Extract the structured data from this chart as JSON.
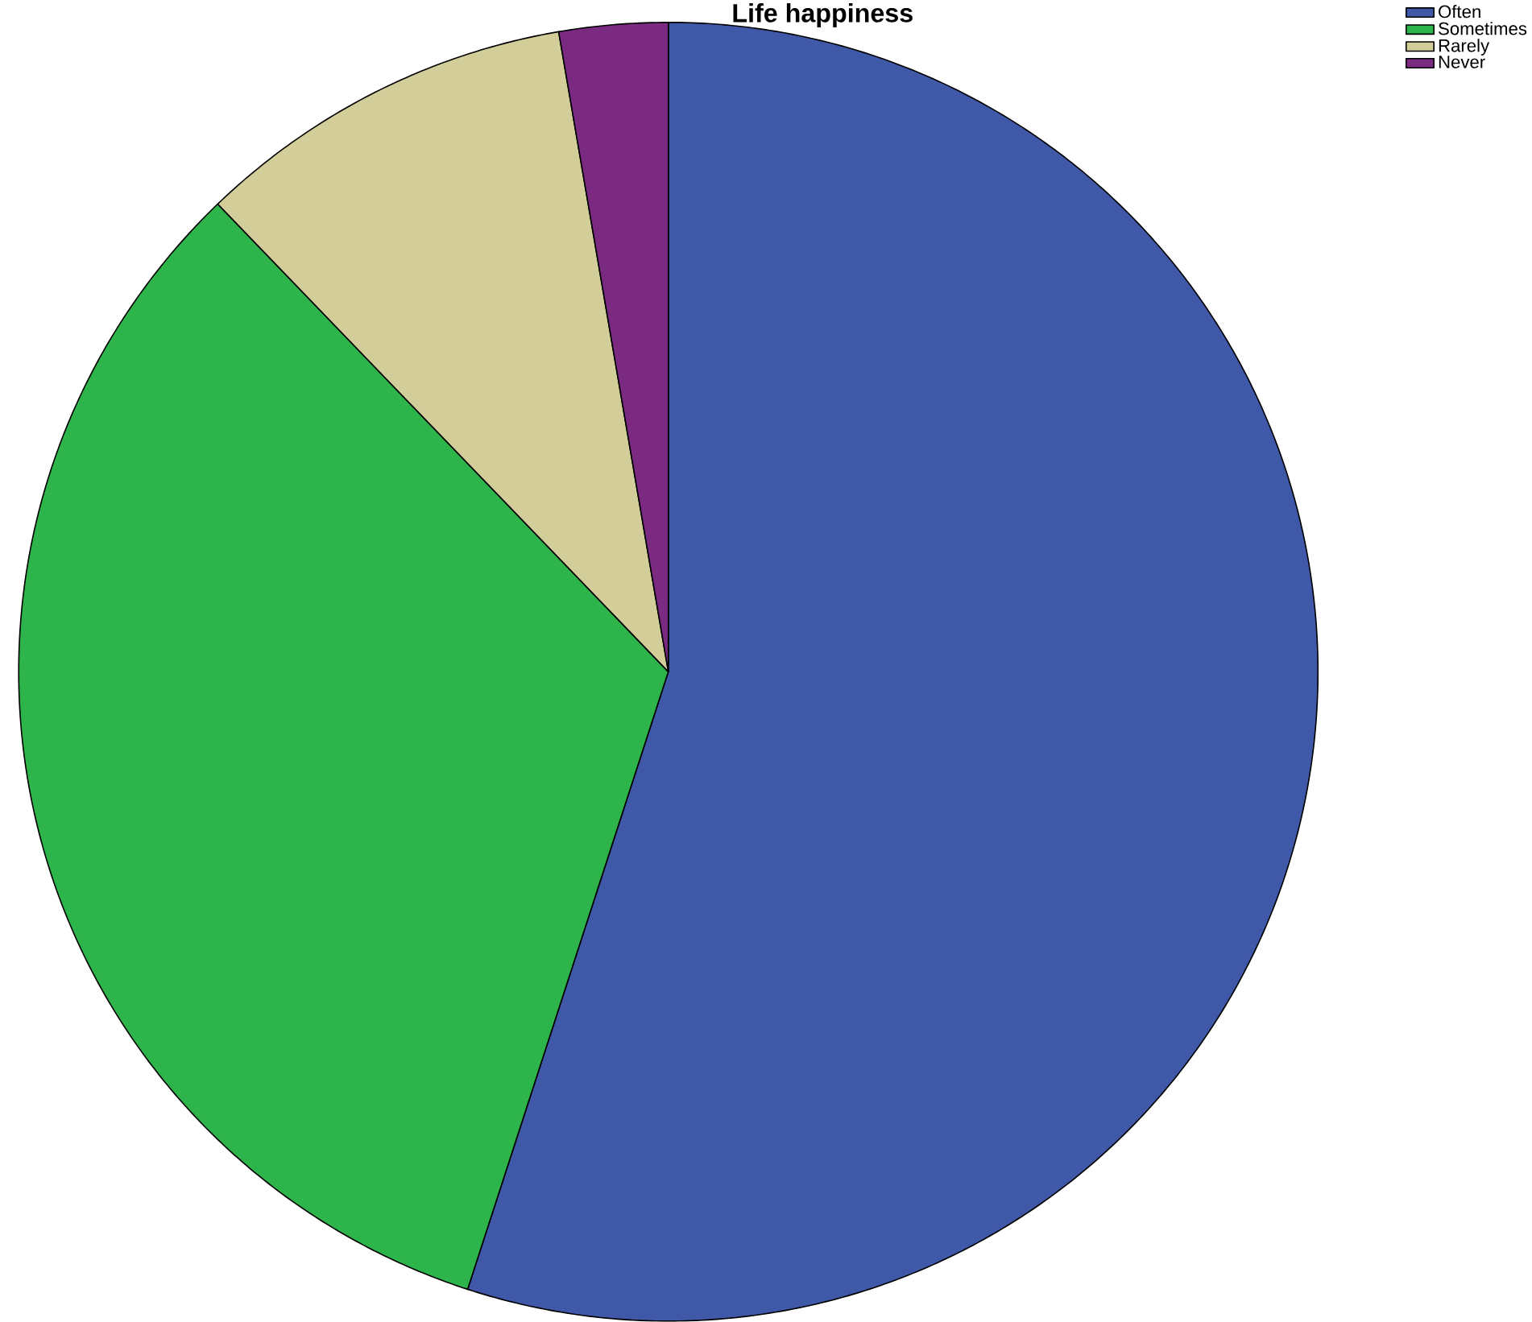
{
  "chart_data": {
    "type": "pie",
    "title": "Life happiness",
    "categories": [
      "Often",
      "Sometimes",
      "Rarely",
      "Never"
    ],
    "values": [
      55,
      32.8,
      9.5,
      2.7
    ],
    "colors": [
      "#3f58a8",
      "#2db44a",
      "#d3cd99",
      "#7b2a82"
    ],
    "legend": "top right"
  }
}
